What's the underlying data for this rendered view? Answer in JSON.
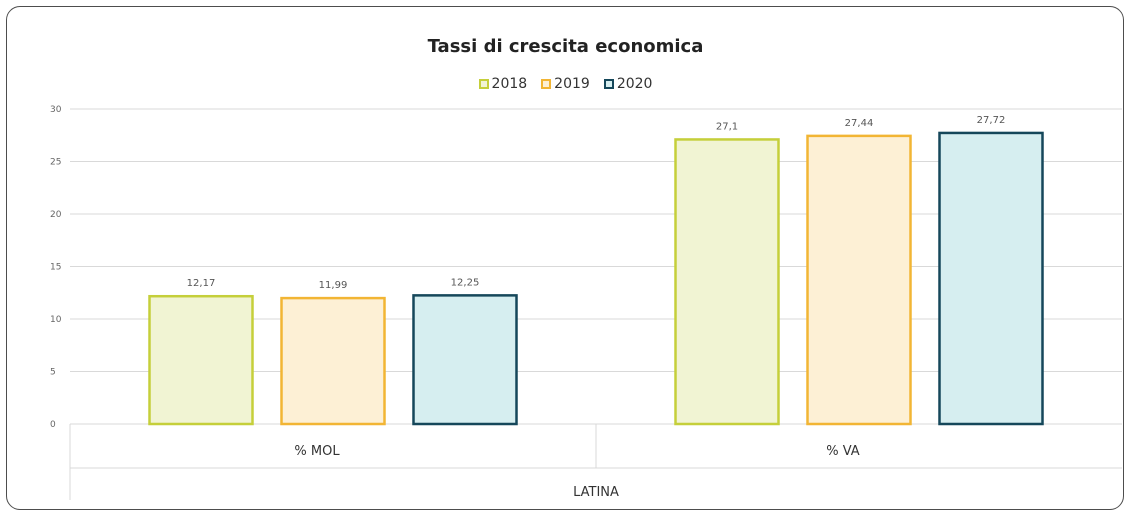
{
  "chart_data": {
    "type": "bar",
    "title": "Tassi di crescita economica",
    "categories": [
      "% MOL",
      "% VA"
    ],
    "group_label": "LATINA",
    "series": [
      {
        "name": "2018",
        "values": [
          12.17,
          27.1
        ],
        "labels": [
          "12,17",
          "27,1"
        ],
        "fill": "#f1f4d3",
        "stroke": "#c5cf3a"
      },
      {
        "name": "2019",
        "values": [
          11.99,
          27.44
        ],
        "labels": [
          "11,99",
          "27,44"
        ],
        "fill": "#fdf0d5",
        "stroke": "#f2b534"
      },
      {
        "name": "2020",
        "values": [
          12.25,
          27.72
        ],
        "labels": [
          "12,25",
          "27,72"
        ],
        "fill": "#d6eef0",
        "stroke": "#15475a"
      }
    ],
    "ylim": [
      0,
      30
    ],
    "yticks": [
      0,
      5,
      10,
      15,
      20,
      25,
      30
    ],
    "legend_position": "top",
    "grid": true
  }
}
